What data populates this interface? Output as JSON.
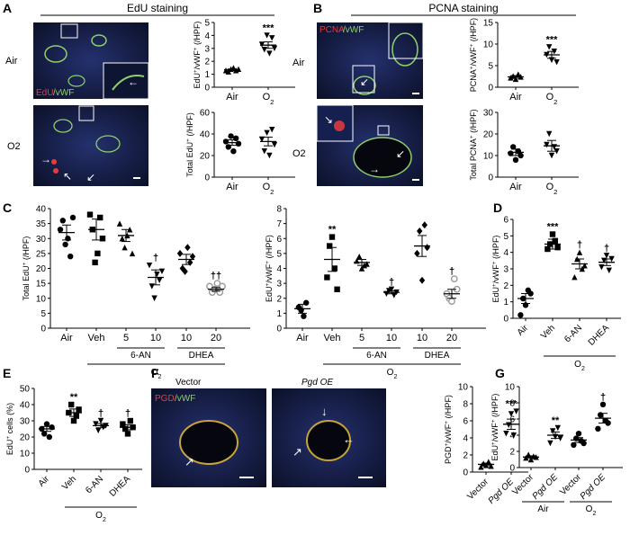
{
  "micrographs": {
    "edu_header": "EdU staining",
    "pcna_header": "PCNA staining",
    "air_label": "Air",
    "o2_label": "O2",
    "edu_stain": "EdU",
    "pcna_stain": "PCNA",
    "vwf_stain": "/vWF",
    "pgd_stain": "PGD",
    "vector_label": "Vector",
    "pgd_oe_label": "Pgd OE"
  },
  "panel_letters": [
    "A",
    "B",
    "C",
    "D",
    "E",
    "F",
    "G"
  ],
  "colors": {
    "red": "#e83c3c",
    "green": "#8ed06a",
    "blue": "#1e2f8c",
    "tissue": "#101528"
  },
  "chart_data": [
    {
      "id": "A1",
      "type": "scatter",
      "categories": [
        "Air",
        "O2"
      ],
      "ylabel": "EdU+/vWF+ (/HPF)",
      "ylim": [
        0,
        5
      ],
      "yticks": [
        0,
        1,
        2,
        3,
        4,
        5
      ],
      "points": [
        [
          1.3,
          1.2,
          1.4,
          1.5,
          1.3,
          1.4
        ],
        [
          3.3,
          2.9,
          4.0,
          2.6,
          3.8,
          3.0
        ]
      ],
      "mean": [
        1.35,
        3.25
      ],
      "sem": [
        0.06,
        0.25
      ],
      "sig": [
        "",
        "***"
      ]
    },
    {
      "id": "A2",
      "type": "scatter",
      "categories": [
        "Air",
        "O2"
      ],
      "ylabel": "Total EdU+ (/HPF)",
      "ylim": [
        0,
        60
      ],
      "yticks": [
        0,
        20,
        40,
        60
      ],
      "points": [
        [
          33,
          28,
          38,
          24,
          36,
          31
        ],
        [
          35,
          24,
          41,
          20,
          44,
          30
        ]
      ],
      "mean": [
        32,
        33
      ],
      "sem": [
        2.5,
        4
      ],
      "sig": [
        "",
        ""
      ]
    },
    {
      "id": "B1",
      "type": "scatter",
      "categories": [
        "Air",
        "O2"
      ],
      "ylabel": "PCNA+/vWF+ (/HPF)",
      "ylim": [
        0,
        15
      ],
      "yticks": [
        0,
        5,
        10,
        15
      ],
      "points": [
        [
          2.2,
          2.6,
          1.9,
          3.0,
          2.4
        ],
        [
          7.5,
          9.3,
          6.3,
          8.3,
          5.8
        ]
      ],
      "mean": [
        2.4,
        7.5
      ],
      "sem": [
        0.3,
        0.8
      ],
      "sig": [
        "",
        "***"
      ]
    },
    {
      "id": "B2",
      "type": "scatter",
      "categories": [
        "Air",
        "O2"
      ],
      "ylabel": "Total PCNA+ (/HPF)",
      "ylim": [
        0,
        30
      ],
      "yticks": [
        0,
        10,
        20,
        30
      ],
      "points": [
        [
          11,
          14,
          8,
          12,
          10
        ],
        [
          15,
          20,
          10,
          14,
          12
        ]
      ],
      "mean": [
        11.5,
        14.5
      ],
      "sem": [
        1.5,
        2.5
      ],
      "sig": [
        "",
        ""
      ]
    },
    {
      "id": "C1",
      "type": "scatter",
      "categories": [
        "Air",
        "Veh",
        "5",
        "10",
        "10",
        "20"
      ],
      "ylabel": "Total EdU+ (/HPF)",
      "ylim": [
        0,
        40
      ],
      "yticks": [
        0,
        5,
        10,
        15,
        20,
        25,
        30,
        35,
        40
      ],
      "points": [
        [
          33,
          36,
          28,
          30,
          24,
          37
        ],
        [
          38,
          33,
          22,
          25,
          37,
          30
        ],
        [
          35,
          30,
          27,
          31,
          33,
          25
        ],
        [
          21,
          14,
          10,
          18,
          16,
          19
        ],
        [
          25,
          20,
          19,
          27,
          22,
          24
        ],
        [
          14,
          12,
          13,
          15,
          12,
          14
        ]
      ],
      "mean": [
        32,
        33,
        31,
        17,
        23,
        13
      ],
      "sem": [
        2.5,
        3.5,
        2,
        2.5,
        1.7,
        0.6
      ],
      "sig": [
        "",
        "",
        "",
        "†",
        "",
        "††"
      ],
      "groups": [
        {
          "label": "6-AN",
          "span": [
            2,
            3
          ]
        },
        {
          "label": "DHEA",
          "span": [
            4,
            5
          ]
        }
      ],
      "footer": "O2"
    },
    {
      "id": "C2",
      "type": "scatter",
      "categories": [
        "Air",
        "Veh",
        "5",
        "10",
        "10",
        "20"
      ],
      "ylabel": "EdU+/vWF+ (/HPF)",
      "ylim": [
        0,
        8
      ],
      "yticks": [
        0,
        1,
        2,
        3,
        4,
        5,
        6,
        7,
        8
      ],
      "points": [
        [
          1.4,
          1.2,
          0.8,
          1.7
        ],
        [
          3.4,
          5.5,
          6.1,
          4.0,
          2.6
        ],
        [
          4.5,
          4.8,
          4.0,
          4.2,
          4.3
        ],
        [
          2.3,
          2.5,
          2.6,
          2.2,
          2.4
        ],
        [
          5.0,
          6.5,
          3.2,
          6.9,
          5.4
        ],
        [
          2.3,
          2.0,
          1.8,
          3.3,
          2.6
        ]
      ],
      "mean": [
        1.3,
        4.6,
        4.4,
        2.4,
        5.5,
        2.3
      ],
      "sem": [
        0.3,
        0.8,
        0.2,
        0.1,
        0.7,
        0.3
      ],
      "sig": [
        "",
        "**",
        "",
        "†",
        "",
        "†"
      ],
      "groups": [
        {
          "label": "6-AN",
          "span": [
            2,
            3
          ]
        },
        {
          "label": "DHEA",
          "span": [
            4,
            5
          ]
        }
      ],
      "footer": "O2"
    },
    {
      "id": "D",
      "type": "scatter",
      "categories": [
        "Air",
        "Veh",
        "6-AN",
        "DHEA"
      ],
      "ylabel": "EdU+/vWF+ (/HPF)",
      "ylim": [
        0,
        6
      ],
      "yticks": [
        0,
        1,
        2,
        3,
        4,
        5,
        6
      ],
      "points": [
        [
          0.2,
          1.2,
          0.8,
          1.7,
          1.5
        ],
        [
          4.2,
          4.5,
          5.1,
          4.7,
          4.3
        ],
        [
          2.5,
          3.6,
          4.0,
          3.0,
          3.2
        ],
        [
          3.1,
          3.5,
          3.8,
          2.9,
          3.6
        ]
      ],
      "mean": [
        1.2,
        4.5,
        3.3,
        3.4
      ],
      "sem": [
        0.3,
        0.3,
        0.3,
        0.2
      ],
      "sig": [
        "",
        "***",
        "†",
        "†"
      ],
      "footer": "O2",
      "footer_span": [
        1,
        3
      ]
    },
    {
      "id": "E",
      "type": "scatter",
      "categories": [
        "Air",
        "Veh",
        "6-AN",
        "DHEA"
      ],
      "ylabel": "EdU+ cells (%)",
      "ylim": [
        0,
        50
      ],
      "yticks": [
        0,
        10,
        20,
        30,
        40,
        50
      ],
      "points": [
        [
          25,
          22,
          28,
          20,
          26
        ],
        [
          35,
          40,
          30,
          33,
          37
        ],
        [
          28,
          24,
          30,
          26,
          27
        ],
        [
          28,
          25,
          22,
          30,
          26
        ]
      ],
      "mean": [
        25,
        35,
        27,
        26
      ],
      "sem": [
        1.5,
        2.3,
        1.3,
        1.6
      ],
      "sig": [
        "",
        "**",
        "†",
        "†"
      ],
      "footer": "O2",
      "footer_span": [
        1,
        3
      ]
    },
    {
      "id": "F",
      "type": "scatter",
      "categories": [
        "Vector",
        "Pgd OE"
      ],
      "ylabel": "PGD+/vWF+ (/HPF)",
      "ylim": [
        0,
        10
      ],
      "yticks": [
        0,
        2,
        4,
        6,
        8,
        10
      ],
      "points": [
        [
          0.6,
          1.0,
          0.8,
          1.2,
          0.7
        ],
        [
          4.5,
          5.5,
          6.8,
          4.3,
          7.1
        ]
      ],
      "mean": [
        0.9,
        5.6
      ],
      "sem": [
        0.15,
        0.6
      ],
      "sig": [
        "",
        "***"
      ]
    },
    {
      "id": "G",
      "type": "scatter",
      "categories": [
        "Vector",
        "Pgd OE",
        "Vector",
        "Pgd OE"
      ],
      "ylabel": "EdU+/vWF+ (/HPF)",
      "ylim": [
        0,
        10
      ],
      "yticks": [
        0,
        2,
        4,
        6,
        8,
        10
      ],
      "points": [
        [
          1.2,
          1.6,
          1.0,
          1.4,
          1.3
        ],
        [
          3.0,
          4.5,
          3.8,
          4.9,
          3.6
        ],
        [
          2.8,
          3.6,
          4.2,
          3.3,
          3.0
        ],
        [
          4.8,
          6.5,
          7.8,
          5.8,
          5.5
        ]
      ],
      "mean": [
        1.3,
        4.0,
        3.4,
        6.1
      ],
      "sem": [
        0.15,
        0.4,
        0.3,
        0.6
      ],
      "sig": [
        "",
        "**",
        "",
        "†"
      ],
      "groups": [
        {
          "label": "Air",
          "span": [
            0,
            1
          ]
        },
        {
          "label": "O2",
          "span": [
            2,
            3
          ]
        }
      ]
    }
  ]
}
